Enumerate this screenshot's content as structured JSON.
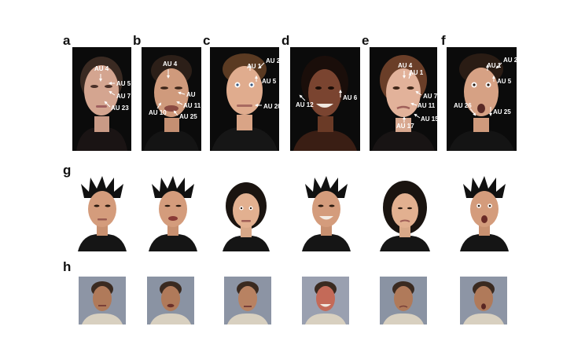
{
  "panels": {
    "row1": [
      {
        "label": "a",
        "aus": [
          "AU 4",
          "AU 5",
          "AU 7",
          "AU 23"
        ]
      },
      {
        "label": "b",
        "aus": [
          "AU 4",
          "AU",
          "AU 10",
          "AU 11",
          "AU 25"
        ]
      },
      {
        "label": "c",
        "aus": [
          "AU 1",
          "AU 2",
          "AU 5",
          "AU 20"
        ]
      },
      {
        "label": "d",
        "aus": [
          "AU 12",
          "AU 6"
        ]
      },
      {
        "label": "e",
        "aus": [
          "AU 4",
          "AU 1",
          "AU 7",
          "AU 11",
          "AU 15",
          "AU 17"
        ]
      },
      {
        "label": "f",
        "aus": [
          "AU 1",
          "AU 2",
          "AU 5",
          "AU 26",
          "AU 25"
        ]
      }
    ],
    "row2_label": "g",
    "row3_label": "h"
  },
  "colors": {
    "photo_background": "#0b0b0b",
    "gray_background": "#8d95a5",
    "annotation": "#ffffff"
  }
}
